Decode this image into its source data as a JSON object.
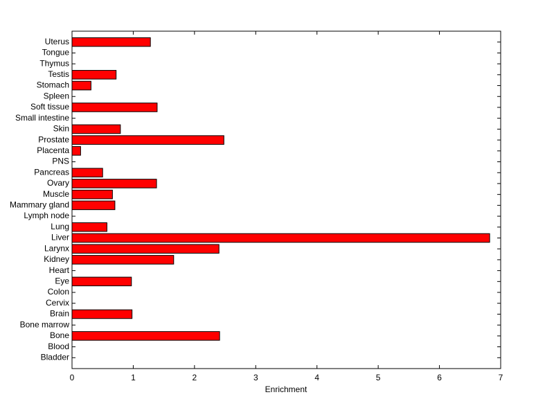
{
  "chart_data": {
    "type": "barh",
    "x_label": "Enrichment",
    "categories": [
      "Bladder",
      "Blood",
      "Bone",
      "Bone marrow",
      "Brain",
      "Cervix",
      "Colon",
      "Eye",
      "Heart",
      "Kidney",
      "Larynx",
      "Liver",
      "Lung",
      "Lymph node",
      "Mammary gland",
      "Muscle",
      "Ovary",
      "Pancreas",
      "PNS",
      "Placenta",
      "Prostate",
      "Skin",
      "Small intestine",
      "Soft tissue",
      "Spleen",
      "Stomach",
      "Testis",
      "Thymus",
      "Tongue",
      "Uterus"
    ],
    "values": [
      0,
      0,
      2.41,
      0,
      0.98,
      0,
      0,
      0.97,
      0,
      1.66,
      2.4,
      6.82,
      0.57,
      0,
      0.7,
      0.66,
      1.38,
      0.5,
      0,
      0.14,
      2.48,
      0.79,
      0,
      1.39,
      0,
      0.31,
      0.72,
      0,
      0,
      1.28
    ],
    "color": "#ff0000",
    "xlim": [
      0,
      7
    ],
    "xticks": [
      0,
      1,
      2,
      3,
      4,
      5,
      6,
      7
    ]
  }
}
